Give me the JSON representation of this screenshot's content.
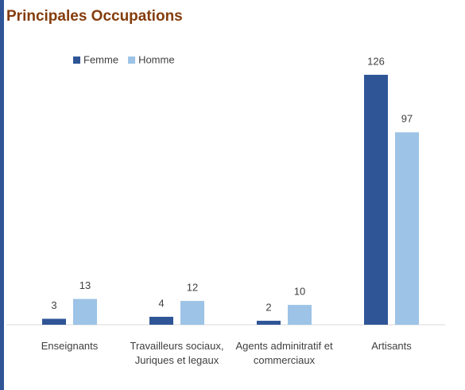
{
  "chart_data": {
    "type": "bar",
    "title": "Principales Occupations",
    "categories": [
      "Enseignants",
      "Travailleurs sociaux, Juriques et legaux",
      "Agents adminitratif et commerciaux",
      "Artisants"
    ],
    "series": [
      {
        "name": "Femme",
        "color": "#2f5597",
        "values": [
          3,
          4,
          2,
          126
        ]
      },
      {
        "name": "Homme",
        "color": "#9dc3e6",
        "values": [
          13,
          12,
          10,
          97
        ]
      }
    ],
    "ylim": [
      0,
      130
    ],
    "legend": "top-left"
  }
}
